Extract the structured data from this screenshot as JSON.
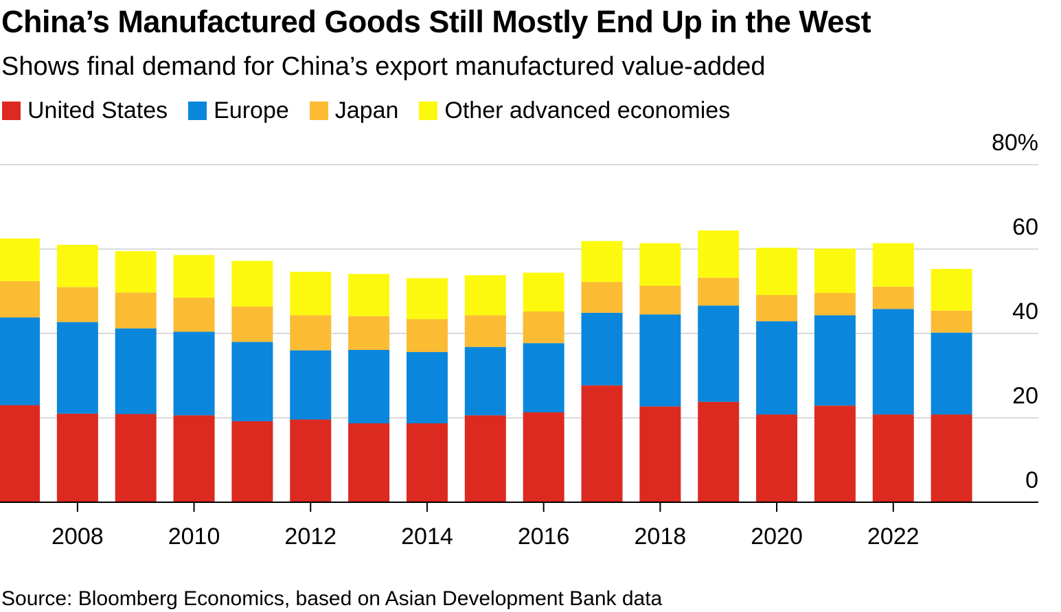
{
  "title": "China’s Manufactured Goods Still Mostly End Up in the West",
  "subtitle": "Shows final demand for China’s export manufactured value-added",
  "source": "Source: Bloomberg Economics, based on Asian Development Bank data",
  "legend": [
    {
      "name": "United States",
      "color": "#dc2a20"
    },
    {
      "name": "Europe",
      "color": "#0a87dc"
    },
    {
      "name": "Japan",
      "color": "#fbbb33"
    },
    {
      "name": "Other advanced economies",
      "color": "#fcf90f"
    }
  ],
  "chart_data": {
    "type": "bar",
    "stacked": true,
    "categories": [
      "2007",
      "2008",
      "2009",
      "2010",
      "2011",
      "2012",
      "2013",
      "2014",
      "2015",
      "2016",
      "2017",
      "2018",
      "2019",
      "2020",
      "2021",
      "2022",
      "2023"
    ],
    "x_tick_labels": [
      "2008",
      "2010",
      "2012",
      "2014",
      "2016",
      "2018",
      "2020",
      "2022"
    ],
    "y_tick_labels": [
      "0",
      "20",
      "40",
      "60",
      "80%"
    ],
    "ylim": [
      0,
      80
    ],
    "y_ticks": [
      0,
      20,
      40,
      60,
      80
    ],
    "grid": true,
    "y_axis_side": "right",
    "series": [
      {
        "name": "United States",
        "color": "#dc2a20",
        "values": [
          23.0,
          21.0,
          20.9,
          20.6,
          19.2,
          19.6,
          18.7,
          18.7,
          20.6,
          21.3,
          27.7,
          22.7,
          23.8,
          20.8,
          22.9,
          20.8,
          20.8
        ]
      },
      {
        "name": "Europe",
        "color": "#0a87dc",
        "values": [
          20.8,
          21.7,
          20.3,
          19.8,
          18.8,
          16.4,
          17.4,
          16.9,
          16.2,
          16.4,
          17.2,
          21.8,
          22.8,
          22.1,
          21.4,
          25.0,
          19.4
        ]
      },
      {
        "name": "Japan",
        "color": "#fbbb33",
        "values": [
          8.6,
          8.3,
          8.5,
          8.1,
          8.4,
          8.3,
          8.0,
          7.8,
          7.5,
          7.5,
          7.3,
          6.8,
          6.6,
          6.2,
          5.3,
          5.3,
          5.2
        ]
      },
      {
        "name": "Other advanced economies",
        "color": "#fcf90f",
        "values": [
          10.1,
          10.0,
          9.8,
          10.1,
          10.8,
          10.3,
          10.0,
          9.7,
          9.5,
          9.2,
          9.7,
          10.1,
          11.2,
          11.2,
          10.5,
          10.3,
          9.9
        ]
      }
    ]
  }
}
